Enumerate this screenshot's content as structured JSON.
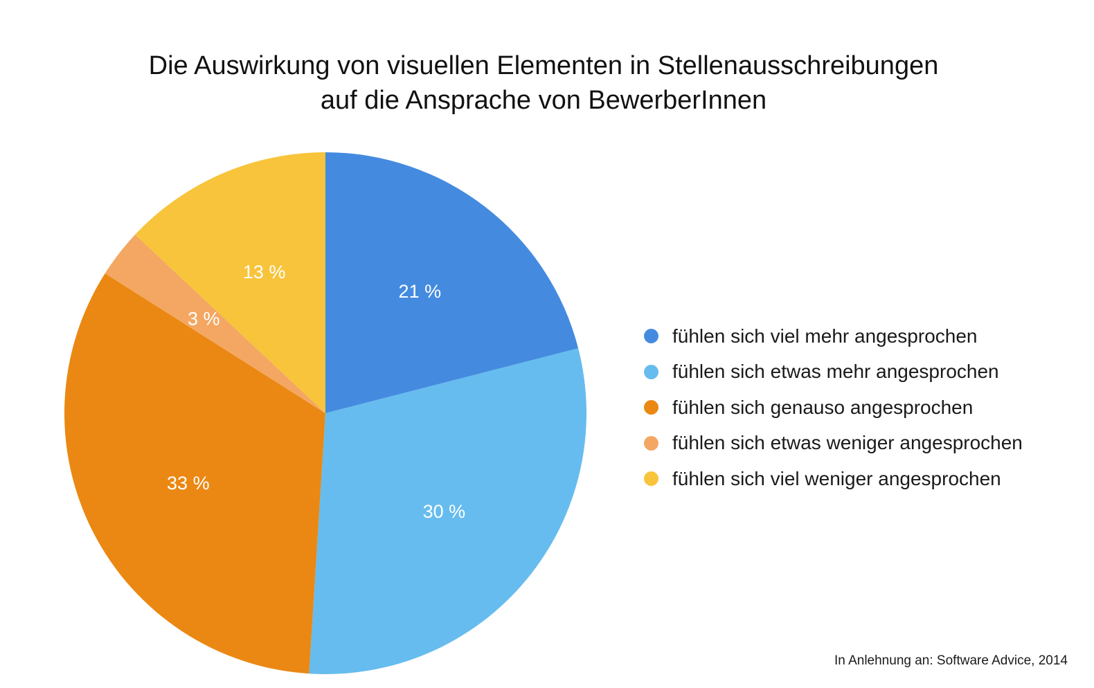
{
  "chart_data": {
    "type": "pie",
    "title": [
      "Die Auswirkung von visuellen Elementen in Stellenausschreibungen",
      "auf die Ansprache von BewerberInnen"
    ],
    "slices": [
      {
        "label": "fühlen sich viel mehr angesprochen",
        "value": 21,
        "display": "21 %",
        "color": "#448BE0"
      },
      {
        "label": "fühlen sich etwas mehr angesprochen",
        "value": 30,
        "display": "30 %",
        "color": "#66BCEE"
      },
      {
        "label": "fühlen sich genauso angesprochen",
        "value": 33,
        "display": "33 %",
        "color": "#EA8813"
      },
      {
        "label": "fühlen sich etwas weniger angesprochen",
        "value": 3,
        "display": "3 %",
        "color": "#F3A762"
      },
      {
        "label": "fühlen sich viel weniger angesprochen",
        "value": 13,
        "display": "13 %",
        "color": "#F8C43B"
      }
    ],
    "legend_position": "right",
    "data_label_color": "#FFFFFF"
  },
  "source_note": "In Anlehnung an: Software Advice, 2014"
}
